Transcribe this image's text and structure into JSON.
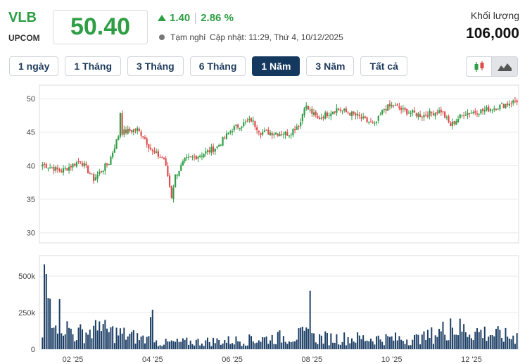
{
  "header": {
    "ticker": "VLB",
    "exchange": "UPCOM",
    "price": "50.40",
    "change": "1.40",
    "change_pct": "2.86 %",
    "status": "Tạm nghỉ",
    "updated": "Cập nhật: 11:29, Thứ 4, 10/12/2025",
    "volume_label": "Khối lượng",
    "volume_value": "106,000",
    "up_color": "#2e9e45"
  },
  "tabs": [
    {
      "label": "1 ngày",
      "active": false
    },
    {
      "label": "1 Tháng",
      "active": false
    },
    {
      "label": "3 Tháng",
      "active": false
    },
    {
      "label": "6 Tháng",
      "active": false
    },
    {
      "label": "1 Năm",
      "active": true
    },
    {
      "label": "3 Năm",
      "active": false
    },
    {
      "label": "Tất cả",
      "active": false
    }
  ],
  "chart_type_buttons": [
    {
      "icon": "candlestick-icon",
      "active": false
    },
    {
      "icon": "area-chart-icon",
      "active": true
    }
  ],
  "chart_data": {
    "type": "candlestick",
    "period": "1 Năm",
    "price_axis": {
      "ticks": [
        30,
        35,
        40,
        45,
        50
      ],
      "range": [
        28.5,
        52
      ]
    },
    "volume_axis": {
      "ticks": [
        0,
        250000,
        500000
      ],
      "tick_labels": [
        "0",
        "250k",
        "500k"
      ],
      "range": [
        0,
        640000
      ]
    },
    "x_axis": {
      "labels": [
        "02 '25",
        "04 '25",
        "06 '25",
        "08 '25",
        "10 '25",
        "12 '25"
      ],
      "label_index": [
        16,
        58,
        100,
        142,
        184,
        226
      ]
    },
    "grid": true,
    "colors": {
      "up": "#2e9e45",
      "down": "#e04b4b",
      "volume": "#1d3f66",
      "grid": "#e8e8e8"
    },
    "close_anchors": [
      [
        0,
        40.2
      ],
      [
        10,
        39.2
      ],
      [
        20,
        40.8
      ],
      [
        27,
        38.0
      ],
      [
        35,
        40.5
      ],
      [
        40,
        44.5
      ],
      [
        41,
        48.0
      ],
      [
        42,
        45.0
      ],
      [
        50,
        45.4
      ],
      [
        53,
        44.5
      ],
      [
        58,
        42.0
      ],
      [
        64,
        41.0
      ],
      [
        66,
        38.5
      ],
      [
        68,
        35.4
      ],
      [
        70,
        38.5
      ],
      [
        75,
        40.8
      ],
      [
        85,
        41.8
      ],
      [
        92,
        42.8
      ],
      [
        100,
        45.5
      ],
      [
        110,
        46.8
      ],
      [
        115,
        45.0
      ],
      [
        130,
        44.8
      ],
      [
        136,
        46.5
      ],
      [
        138,
        49.0
      ],
      [
        145,
        47.0
      ],
      [
        155,
        48.5
      ],
      [
        165,
        47.5
      ],
      [
        175,
        46.0
      ],
      [
        180,
        48.5
      ],
      [
        185,
        49.0
      ],
      [
        190,
        48.2
      ],
      [
        200,
        47.5
      ],
      [
        210,
        48.2
      ],
      [
        215,
        46.0
      ],
      [
        222,
        47.8
      ],
      [
        232,
        48.2
      ],
      [
        240,
        48.8
      ],
      [
        250,
        49.7
      ]
    ],
    "volume_anchors": [
      [
        0,
        80000
      ],
      [
        1,
        580000
      ],
      [
        15,
        140000
      ],
      [
        30,
        190000
      ],
      [
        56,
        90000
      ],
      [
        57,
        220000
      ],
      [
        58,
        270000
      ],
      [
        60,
        60000
      ],
      [
        110,
        90000
      ],
      [
        140,
        140000
      ],
      [
        141,
        400000
      ],
      [
        142,
        110000
      ],
      [
        200,
        100000
      ],
      [
        215,
        210000
      ],
      [
        250,
        110000
      ]
    ],
    "bars": 251
  }
}
